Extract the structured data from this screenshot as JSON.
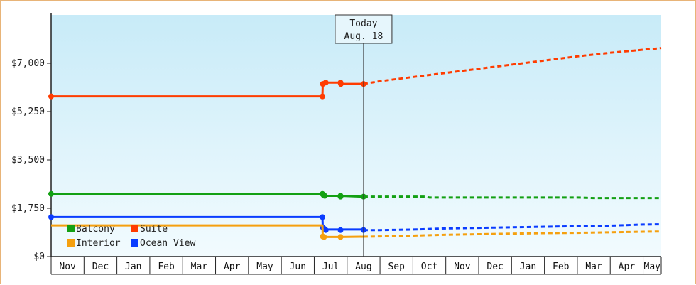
{
  "chart_data": {
    "type": "line",
    "title": "",
    "xlabel": "",
    "ylabel": "",
    "ylim": [
      0,
      8750
    ],
    "y_ticks": [
      {
        "value": 0,
        "label": "$0"
      },
      {
        "value": 1750,
        "label": "$1,750"
      },
      {
        "value": 3500,
        "label": "$3,500"
      },
      {
        "value": 5250,
        "label": "$5,250"
      },
      {
        "value": 7000,
        "label": "$7,000"
      }
    ],
    "x_months": [
      "Nov",
      "Dec",
      "Jan",
      "Feb",
      "Mar",
      "Apr",
      "May",
      "Jun",
      "Jul",
      "Aug",
      "Sep",
      "Oct",
      "Nov",
      "Dec",
      "Jan",
      "Feb",
      "Mar",
      "Apr",
      "May"
    ],
    "x_range": [
      0,
      18.55
    ],
    "today_marker": {
      "line1": "Today",
      "line2": "Aug. 18",
      "x": 9.5
    },
    "series": [
      {
        "name": "Suite",
        "color": "#ff3c00",
        "points": [
          [
            0,
            5800
          ],
          [
            8.25,
            5800
          ],
          [
            8.26,
            6250
          ],
          [
            8.35,
            6300
          ],
          [
            8.8,
            6300
          ],
          [
            8.81,
            6250
          ],
          [
            9.5,
            6250
          ]
        ],
        "markers": [
          [
            0,
            5800
          ],
          [
            8.25,
            5800
          ],
          [
            8.26,
            6250
          ],
          [
            8.35,
            6300
          ],
          [
            8.8,
            6300
          ],
          [
            8.81,
            6250
          ],
          [
            9.5,
            6250
          ]
        ],
        "forecast": [
          [
            9.5,
            6250
          ],
          [
            10,
            6350
          ],
          [
            11,
            6500
          ],
          [
            12,
            6650
          ],
          [
            13,
            6800
          ],
          [
            14,
            6950
          ],
          [
            15,
            7100
          ],
          [
            16,
            7250
          ],
          [
            17,
            7380
          ],
          [
            18.55,
            7550
          ]
        ]
      },
      {
        "name": "Balcony",
        "color": "#13a013",
        "points": [
          [
            0,
            2270
          ],
          [
            8.25,
            2270
          ],
          [
            8.3,
            2200
          ],
          [
            8.8,
            2200
          ],
          [
            9.5,
            2170
          ]
        ],
        "markers": [
          [
            0,
            2270
          ],
          [
            8.25,
            2270
          ],
          [
            8.28,
            2230
          ],
          [
            8.32,
            2200
          ],
          [
            8.8,
            2200
          ],
          [
            8.8,
            2170
          ],
          [
            9.5,
            2170
          ]
        ],
        "forecast": [
          [
            9.5,
            2170
          ],
          [
            10,
            2170
          ],
          [
            11.4,
            2170
          ],
          [
            11.5,
            2140
          ],
          [
            13,
            2140
          ],
          [
            16,
            2140
          ],
          [
            16.5,
            2120
          ],
          [
            18.55,
            2120
          ]
        ]
      },
      {
        "name": "Ocean View",
        "color": "#0a3cff",
        "points": [
          [
            0,
            1430
          ],
          [
            8.25,
            1430
          ],
          [
            8.26,
            1060
          ],
          [
            8.35,
            980
          ],
          [
            8.8,
            980
          ],
          [
            9.5,
            980
          ]
        ],
        "markers": [
          [
            0,
            1430
          ],
          [
            8.25,
            1430
          ],
          [
            8.26,
            1060
          ],
          [
            8.3,
            1010
          ],
          [
            8.35,
            960
          ],
          [
            8.8,
            960
          ],
          [
            9.5,
            960
          ]
        ],
        "forecast": [
          [
            9.5,
            960
          ],
          [
            10,
            960
          ],
          [
            11,
            980
          ],
          [
            12,
            1020
          ],
          [
            13,
            1040
          ],
          [
            14,
            1060
          ],
          [
            15,
            1080
          ],
          [
            16,
            1100
          ],
          [
            17,
            1120
          ],
          [
            18,
            1160
          ],
          [
            18.55,
            1170
          ]
        ]
      },
      {
        "name": "Interior",
        "color": "#f5a00f",
        "points": [
          [
            0,
            1130
          ],
          [
            8.25,
            1130
          ],
          [
            8.26,
            730
          ],
          [
            8.3,
            710
          ],
          [
            8.8,
            710
          ],
          [
            9.5,
            720
          ]
        ],
        "markers": [
          [
            8.26,
            730
          ],
          [
            8.3,
            710
          ],
          [
            8.8,
            710
          ]
        ],
        "forecast": [
          [
            9.5,
            720
          ],
          [
            10,
            730
          ],
          [
            11,
            760
          ],
          [
            12,
            790
          ],
          [
            13,
            810
          ],
          [
            14,
            830
          ],
          [
            15,
            850
          ],
          [
            16,
            860
          ],
          [
            17,
            880
          ],
          [
            18,
            900
          ],
          [
            18.55,
            910
          ]
        ]
      }
    ],
    "legend": {
      "placement": "bottom-left",
      "items": [
        {
          "name": "Balcony",
          "color": "#13a013"
        },
        {
          "name": "Suite",
          "color": "#ff3c00"
        },
        {
          "name": "Interior",
          "color": "#f5a00f"
        },
        {
          "name": "Ocean View",
          "color": "#0a3cff"
        }
      ]
    },
    "background_gradient": [
      "#c8ebf8",
      "#f2fbfe"
    ],
    "grid": false
  }
}
